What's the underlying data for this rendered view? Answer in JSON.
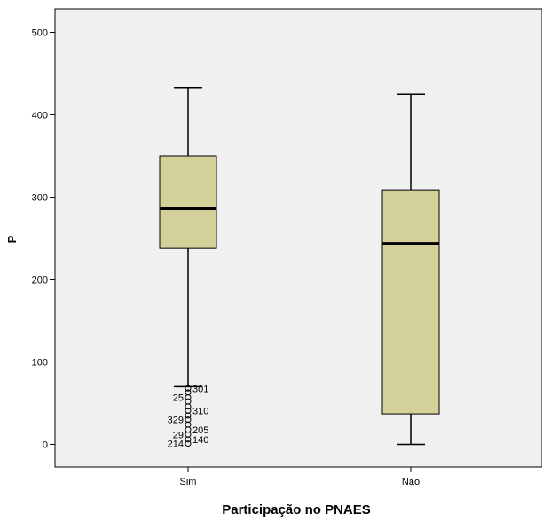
{
  "chart_data": {
    "type": "boxplot",
    "title": "",
    "xlabel": "Participação no PNAES",
    "ylabel": "P",
    "ylim": [
      -27,
      515
    ],
    "yticks": [
      0,
      100,
      200,
      300,
      400,
      500
    ],
    "grid": false,
    "categories": [
      "Sim",
      "Não"
    ],
    "boxes": [
      {
        "category": "Sim",
        "whisker_low": 70,
        "q1": 238,
        "median": 286,
        "q3": 350,
        "whisker_high": 433,
        "outliers": [
          {
            "value": 68,
            "label": "301"
          },
          {
            "value": 63,
            "label": ""
          },
          {
            "value": 57,
            "label": "25"
          },
          {
            "value": 52,
            "label": ""
          },
          {
            "value": 46,
            "label": ""
          },
          {
            "value": 41,
            "label": "310"
          },
          {
            "value": 35,
            "label": ""
          },
          {
            "value": 30,
            "label": "329"
          },
          {
            "value": 24,
            "label": ""
          },
          {
            "value": 18,
            "label": "205"
          },
          {
            "value": 12,
            "label": "29"
          },
          {
            "value": 6,
            "label": "140"
          },
          {
            "value": 1,
            "label": "214"
          }
        ]
      },
      {
        "category": "Não",
        "whisker_low": 0,
        "q1": 37,
        "median": 244,
        "q3": 309,
        "whisker_high": 425,
        "outliers": []
      }
    ],
    "colors": {
      "plot_background": "#f0f0f0",
      "box_fill": "#d4d09a",
      "stroke": "#000000"
    }
  }
}
